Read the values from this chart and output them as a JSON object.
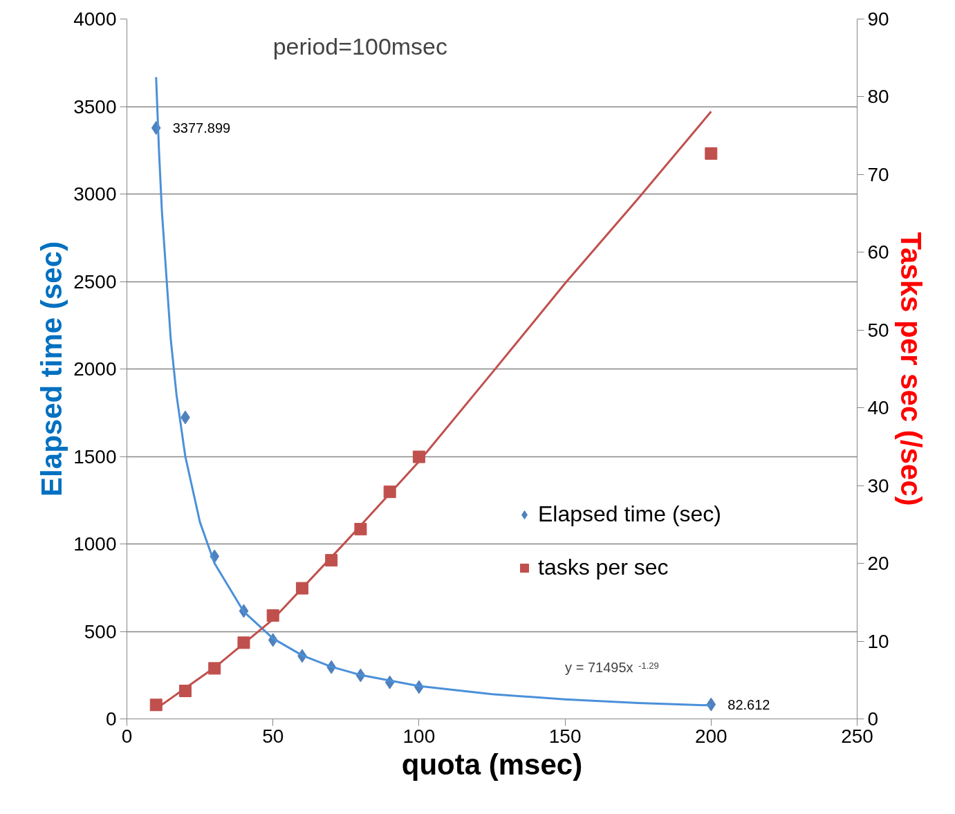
{
  "chart_data": {
    "type": "scatter",
    "xlabel": "quota (msec)",
    "ylabel": "Elapsed time (sec)",
    "y2label": "Tasks per sec (/sec)",
    "annotations": [
      "period=100msec",
      "y = 71495x$^{-1.29}$"
    ],
    "xlim": [
      0,
      250
    ],
    "xticks": [
      0,
      50,
      100,
      150,
      200,
      250
    ],
    "ylim": [
      0,
      4000
    ],
    "yticks": [
      0,
      500,
      1000,
      1500,
      2000,
      2500,
      3000,
      3500,
      4000
    ],
    "y2lim": [
      0,
      90
    ],
    "y2ticks": [
      0,
      10,
      20,
      30,
      40,
      50,
      60,
      70,
      80,
      90
    ],
    "grid": "y",
    "legend": "right",
    "series": [
      {
        "name": "Elapsed time (sec)",
        "marker": "diamond",
        "color": "#4f81bd",
        "x": [
          10,
          20,
          30,
          40,
          50,
          60,
          70,
          80,
          90,
          100,
          200
        ],
        "values": [
          3377.899,
          1723,
          929,
          617,
          451,
          360,
          296,
          249,
          209,
          182,
          82.612
        ],
        "value_labels": [
          "3377.899",
          null,
          null,
          null,
          null,
          null,
          null,
          null,
          null,
          null,
          "82.612"
        ]
      },
      {
        "name": "tasks per sec",
        "marker": "square",
        "color": "#c0504d",
        "axis": "y2",
        "x": [
          10,
          20,
          30,
          40,
          50,
          60,
          70,
          80,
          90,
          100,
          200
        ],
        "values": [
          1.8,
          3.6,
          6.5,
          9.8,
          13.3,
          16.8,
          20.4,
          24.4,
          29.2,
          33.7,
          72.7
        ]
      },
      {
        "type": "line",
        "color": "#4a90d9",
        "x": [
          10,
          11,
          12,
          15,
          17,
          20,
          25,
          30,
          40,
          50,
          60,
          70,
          80,
          100,
          125,
          150,
          175,
          200
        ],
        "values": [
          3668,
          3242,
          2898,
          2173,
          1850,
          1500,
          1125,
          889,
          613,
          460,
          363,
          298,
          251,
          188,
          141,
          112,
          91,
          77
        ]
      },
      {
        "type": "line",
        "color": "#c0504d",
        "axis": "y2",
        "x": [
          10,
          30,
          50,
          75,
          100,
          125,
          150,
          175,
          200
        ],
        "values": [
          1.3,
          6.6,
          12.8,
          22.8,
          33.1,
          44.5,
          56.0,
          66.9,
          78.1
        ]
      }
    ]
  }
}
